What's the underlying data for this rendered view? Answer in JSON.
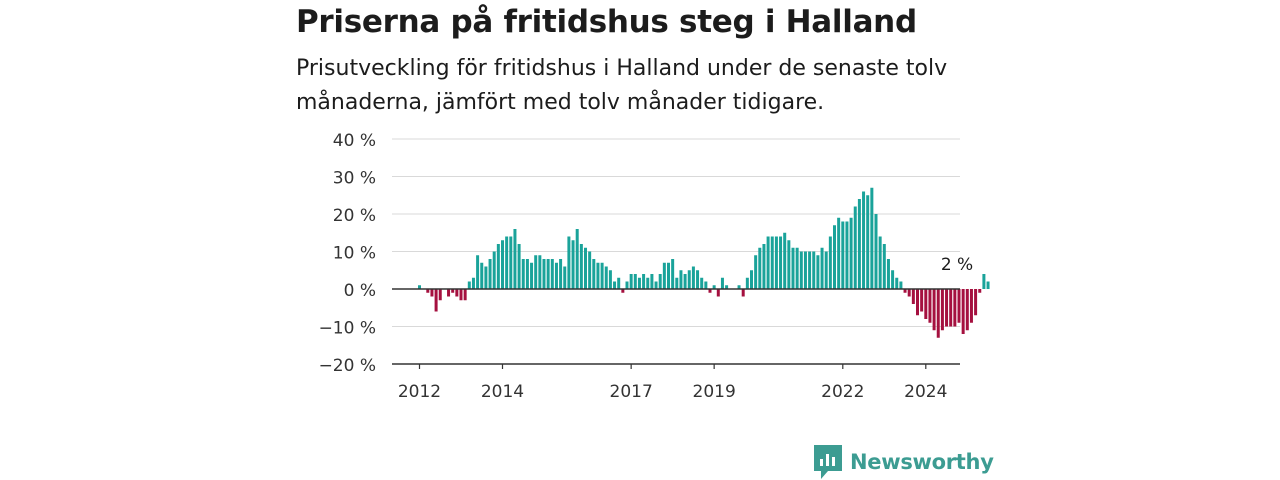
{
  "title": "Priserna på fritidshus steg i Halland",
  "subtitle": "Prisutveckling för fritidshus i Halland under de senaste tolv månaderna, jämfört med tolv månader tidigare.",
  "brand": "Newsworthy",
  "colors": {
    "positive": "#1aa39a",
    "negative": "#a5103f",
    "grid": "#d9d9d9",
    "axis": "#333333",
    "brand": "#3c9c92"
  },
  "chart_data": {
    "type": "bar",
    "title": "Priserna på fritidshus steg i Halland",
    "xlabel": "",
    "ylabel": "",
    "ylim": [
      -20,
      40
    ],
    "yticks": [
      40,
      30,
      20,
      10,
      0,
      -10,
      -20
    ],
    "ytick_labels": [
      "40 %",
      "30 %",
      "20 %",
      "10 %",
      "0 %",
      "−10 %",
      "−20 %"
    ],
    "xticks": [
      {
        "label": "2012",
        "index": 0
      },
      {
        "label": "2014",
        "index": 20
      },
      {
        "label": "2017",
        "index": 51
      },
      {
        "label": "2019",
        "index": 71
      },
      {
        "label": "2022",
        "index": 102
      },
      {
        "label": "2024",
        "index": 122
      }
    ],
    "annotation": {
      "label": "2 %",
      "index": 130
    },
    "grid": true,
    "series": [
      {
        "values": [
          1,
          0,
          -1,
          -2,
          -6,
          -3,
          0,
          -2,
          -1,
          -2,
          -3,
          -3,
          2,
          3,
          9,
          7,
          6,
          8,
          10,
          12,
          13,
          14,
          14,
          16,
          12,
          8,
          8,
          7,
          9,
          9,
          8,
          8,
          8,
          7,
          8,
          6,
          14,
          13,
          16,
          12,
          11,
          10,
          8,
          7,
          7,
          6,
          5,
          2,
          3,
          -1,
          2,
          4,
          4,
          3,
          4,
          3,
          4,
          2,
          4,
          7,
          7,
          8,
          3,
          5,
          4,
          5,
          6,
          5,
          3,
          2,
          -1,
          1,
          -2,
          3,
          1,
          0,
          0,
          1,
          -2,
          3,
          5,
          9,
          11,
          12,
          14,
          14,
          14,
          14,
          15,
          13,
          11,
          11,
          10,
          10,
          10,
          10,
          9,
          11,
          10,
          14,
          17,
          19,
          18,
          18,
          19,
          22,
          24,
          26,
          25,
          27,
          20,
          14,
          12,
          8,
          5,
          3,
          2,
          -1,
          -2,
          -4,
          -7,
          -6,
          -8,
          -9,
          -11,
          -13,
          -11,
          -10,
          -10,
          -10,
          -9,
          -12,
          -11,
          -9,
          -7,
          -1,
          4,
          2
        ]
      }
    ]
  }
}
